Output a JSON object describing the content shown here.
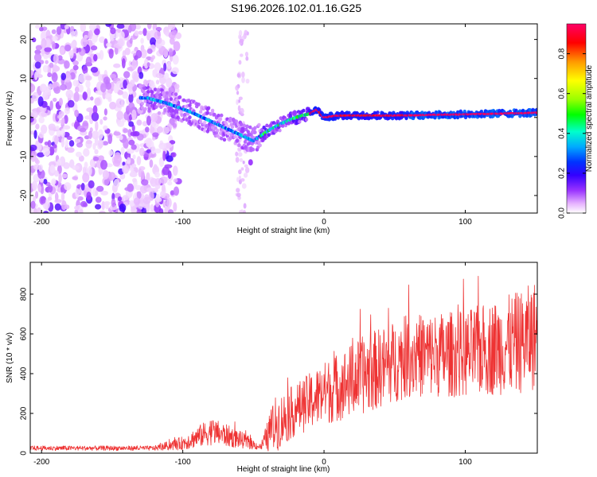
{
  "title": "S196.2026.102.01.16.G25",
  "chart_data": [
    {
      "type": "heatmap",
      "name": "spectrogram",
      "xlabel": "Height of straight line (km)",
      "ylabel": "Frequency (Hz)",
      "xlim": [
        -208,
        151
      ],
      "ylim": [
        -24.5,
        24
      ],
      "x_ticks": [
        -200,
        -100,
        0,
        100
      ],
      "y_ticks": [
        -20,
        -10,
        0,
        10,
        20
      ],
      "colorbar": {
        "label": "Normalized spectral amplitude",
        "range": [
          0,
          0.95
        ],
        "ticks": [
          0.0,
          0.2,
          0.4,
          0.6,
          0.8
        ],
        "colormap": [
          "#ffffff",
          "#e6b3ff",
          "#9933ff",
          "#3300ff",
          "#0033ff",
          "#00aaff",
          "#00ffcc",
          "#00ff00",
          "#99ff00",
          "#ffff00",
          "#ff9900",
          "#ff0000",
          "#ff0066"
        ]
      },
      "ridge": [
        {
          "x": -125,
          "freq": 5.0
        },
        {
          "x": -110,
          "freq": 3.5
        },
        {
          "x": -95,
          "freq": 1.5
        },
        {
          "x": -80,
          "freq": -1.0
        },
        {
          "x": -65,
          "freq": -3.5
        },
        {
          "x": -50,
          "freq": -6.0
        },
        {
          "x": -40,
          "freq": -3.5
        },
        {
          "x": -30,
          "freq": -1.5
        },
        {
          "x": -20,
          "freq": 0.0
        },
        {
          "x": -10,
          "freq": 1.0
        },
        {
          "x": -5,
          "freq": 2.0
        },
        {
          "x": 0,
          "freq": 0.0
        },
        {
          "x": 10,
          "freq": 0.5
        },
        {
          "x": 50,
          "freq": 0.5
        },
        {
          "x": 100,
          "freq": 0.8
        },
        {
          "x": 150,
          "freq": 1.2
        }
      ]
    },
    {
      "type": "line",
      "name": "snr",
      "xlabel": "Height of straight line (km)",
      "ylabel": "SNR (10 * v/v)",
      "xlim": [
        -208,
        151
      ],
      "ylim": [
        0,
        960
      ],
      "x_ticks": [
        -200,
        -100,
        0,
        100
      ],
      "y_ticks": [
        0,
        200,
        400,
        600,
        800
      ],
      "color": "#ee3333",
      "envelope": [
        {
          "x": -208,
          "mean": 25,
          "spread": 12
        },
        {
          "x": -120,
          "mean": 25,
          "spread": 12
        },
        {
          "x": -100,
          "mean": 50,
          "spread": 35
        },
        {
          "x": -80,
          "mean": 110,
          "spread": 70
        },
        {
          "x": -60,
          "mean": 70,
          "spread": 45
        },
        {
          "x": -45,
          "mean": 30,
          "spread": 15
        },
        {
          "x": -35,
          "mean": 140,
          "spread": 140
        },
        {
          "x": -20,
          "mean": 220,
          "spread": 130
        },
        {
          "x": 0,
          "mean": 300,
          "spread": 160
        },
        {
          "x": 30,
          "mean": 400,
          "spread": 200
        },
        {
          "x": 60,
          "mean": 490,
          "spread": 210
        },
        {
          "x": 100,
          "mean": 500,
          "spread": 220
        },
        {
          "x": 140,
          "mean": 560,
          "spread": 260
        },
        {
          "x": 151,
          "mean": 600,
          "spread": 280
        }
      ]
    }
  ]
}
